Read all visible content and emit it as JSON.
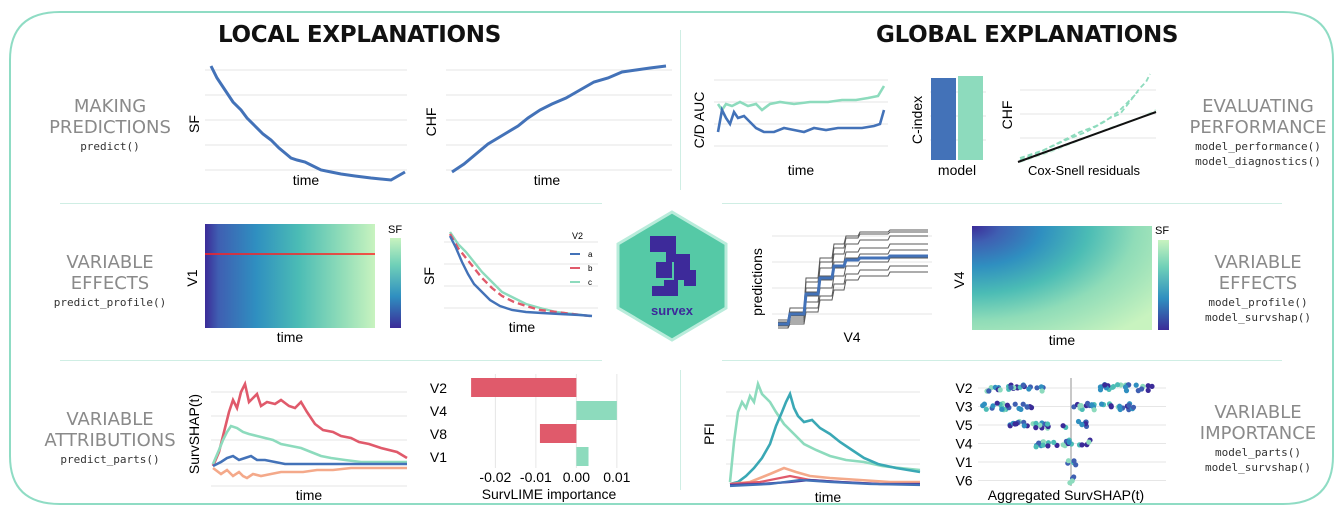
{
  "headers": {
    "local": "LOCAL EXPLANATIONS",
    "global": "GLOBAL EXPLANATIONS"
  },
  "sections": {
    "making_predictions": {
      "title": [
        "MAKING",
        "PREDICTIONS"
      ],
      "functions": [
        "predict()"
      ]
    },
    "variable_effects_local": {
      "title": [
        "VARIABLE",
        "EFFECTS"
      ],
      "functions": [
        "predict_profile()"
      ]
    },
    "variable_attributions": {
      "title": [
        "VARIABLE",
        "ATTRIBUTIONS"
      ],
      "functions": [
        "predict_parts()"
      ]
    },
    "evaluating_performance": {
      "title": [
        "EVALUATING",
        "PERFORMANCE"
      ],
      "functions": [
        "model_performance()",
        "model_diagnostics()"
      ]
    },
    "variable_effects_global": {
      "title": [
        "VARIABLE",
        "EFFECTS"
      ],
      "functions": [
        "model_profile()",
        "model_survshap()"
      ]
    },
    "variable_importance": {
      "title": [
        "VARIABLE",
        "IMPORTANCE"
      ],
      "functions": [
        "model_parts()",
        "model_survshap()"
      ]
    }
  },
  "logo": {
    "text": "survex"
  },
  "colors": {
    "frame": "#8fdcc4",
    "blue": "#4372b8",
    "teal": "#8ddbbd",
    "red": "#e05a6b",
    "salmon": "#f4a98a",
    "dark_teal": "#3aa8b5",
    "logo_bg": "#55c9a6",
    "logo_fg": "#3d2a9a"
  },
  "plots": {
    "sf_predict": {
      "xlabel": "time",
      "ylabel": "SF"
    },
    "chf_predict": {
      "xlabel": "time",
      "ylabel": "CHF"
    },
    "sf_heatmap": {
      "xlabel": "time",
      "ylabel": "V1",
      "legend_title": "SF"
    },
    "sf_ceteris": {
      "xlabel": "time",
      "ylabel": "SF",
      "legend_title": "V2",
      "legend": [
        "a",
        "b",
        "c"
      ]
    },
    "survshap_local": {
      "xlabel": "time",
      "ylabel": "SurvSHAP(t)"
    },
    "survlime": {
      "xlabel": "SurvLIME importance"
    },
    "cd_auc": {
      "xlabel": "time",
      "ylabel": "C/D AUC"
    },
    "cindex": {
      "xlabel": "model",
      "ylabel": "C-index"
    },
    "cox_snell": {
      "xlabel": "Cox-Snell residuals",
      "ylabel": "CHF"
    },
    "pdp": {
      "xlabel": "V4",
      "ylabel": "predictions"
    },
    "v4_heatmap": {
      "xlabel": "time",
      "ylabel": "V4",
      "legend_title": "SF"
    },
    "pfi": {
      "xlabel": "time",
      "ylabel": "PFI"
    },
    "survshap_agg": {
      "xlabel": "Aggregated SurvSHAP(t)"
    }
  },
  "chart_data": {
    "type": "bar",
    "categories": [
      "V2",
      "V4",
      "V8",
      "V1"
    ],
    "values": [
      -0.026,
      0.01,
      -0.009,
      0.003
    ],
    "xlabel": "SurvLIME importance",
    "xticks": [
      "-0.02",
      "-0.01",
      "0.00",
      "0.01"
    ],
    "xlim": [
      -0.028,
      0.013
    ]
  },
  "survshap_agg_chart": {
    "type": "scatter",
    "categories": [
      "V2",
      "V3",
      "V5",
      "V4",
      "V1",
      "V6"
    ]
  }
}
